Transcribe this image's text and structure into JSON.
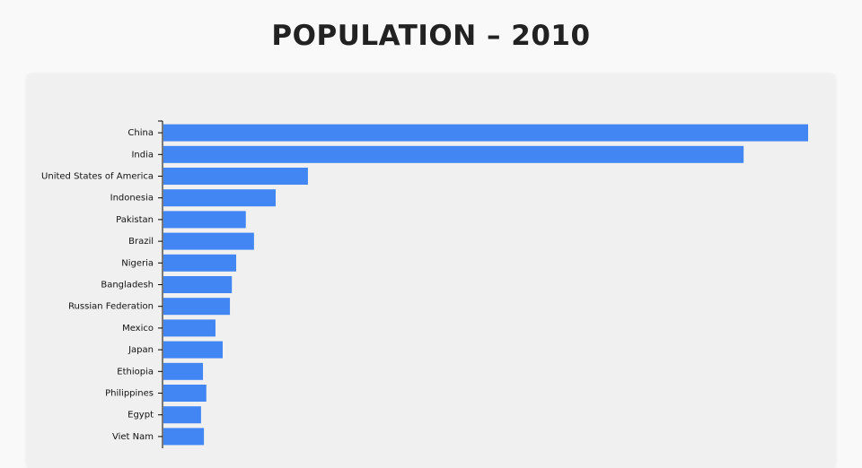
{
  "chart_data": {
    "type": "bar",
    "orientation": "horizontal",
    "title": "POPULATION – 2010",
    "categories": [
      "China",
      "India",
      "United States of America",
      "Indonesia",
      "Pakistan",
      "Brazil",
      "Nigeria",
      "Bangladesh",
      "Russian Federation",
      "Mexico",
      "Japan",
      "Ethiopia",
      "Philippines",
      "Egypt",
      "Viet Nam"
    ],
    "values": [
      1341,
      1207,
      302,
      235,
      173,
      190,
      153,
      144,
      140,
      110,
      125,
      84,
      91,
      80,
      86
    ],
    "color": "#4286f4"
  }
}
